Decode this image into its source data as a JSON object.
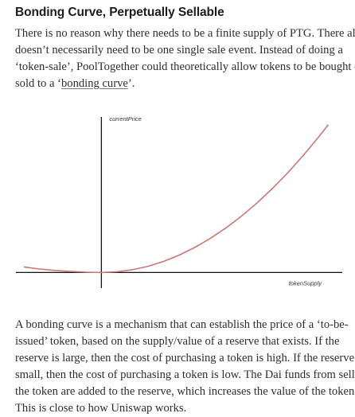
{
  "article": {
    "heading": "Bonding Curve, Perpetually Sellable",
    "paragraph1": {
      "lines": [
        "There is no reason why there needs to be a finite supply of PTG. There also",
        "doesn’t necessarily need to be one single sale event. Instead of doing a",
        "‘token-sale’, PoolTogether could theoretically allow tokens to be bought or"
      ],
      "line4_prefix": "sold to a ‘",
      "line4_link": "bonding curve",
      "line4_suffix": "’."
    },
    "paragraph2": {
      "lines": [
        "A bonding curve is a mechanism that can establish the price of a ‘to-be-",
        "issued’ token, based on the supply/value of a reserve that exists. If the",
        "reserve is large, then the cost of purchasing a token is high. If the reserve is",
        "small, then the cost of purchasing a token is low. The Dai funds from selling",
        "the token are added to the reserve, which increases the value of the token.",
        "This is close to how Uniswap works."
      ]
    }
  },
  "chart_data": {
    "type": "line",
    "title": "",
    "ylabel": "currentPrice",
    "xlabel": "tokenSupply",
    "xlim": [
      -1.1,
      3.1
    ],
    "ylim": [
      -0.45,
      4.6
    ],
    "grid": false,
    "series": [
      {
        "name": "bonding curve",
        "color": "#c97777",
        "x": [
          -1.0,
          -0.8,
          -0.6,
          -0.4,
          -0.2,
          0.0,
          0.2,
          0.4,
          0.6,
          0.8,
          1.0,
          1.2,
          1.4,
          1.6,
          1.8,
          2.0,
          2.2,
          2.4,
          2.6,
          2.8,
          2.92
        ],
        "y": [
          0.16,
          0.1,
          0.06,
          0.03,
          0.01,
          0.0,
          0.02,
          0.08,
          0.18,
          0.32,
          0.5,
          0.72,
          0.98,
          1.28,
          1.62,
          2.0,
          2.42,
          2.88,
          3.38,
          3.92,
          4.26
        ]
      }
    ],
    "axis_color": "#111111"
  }
}
